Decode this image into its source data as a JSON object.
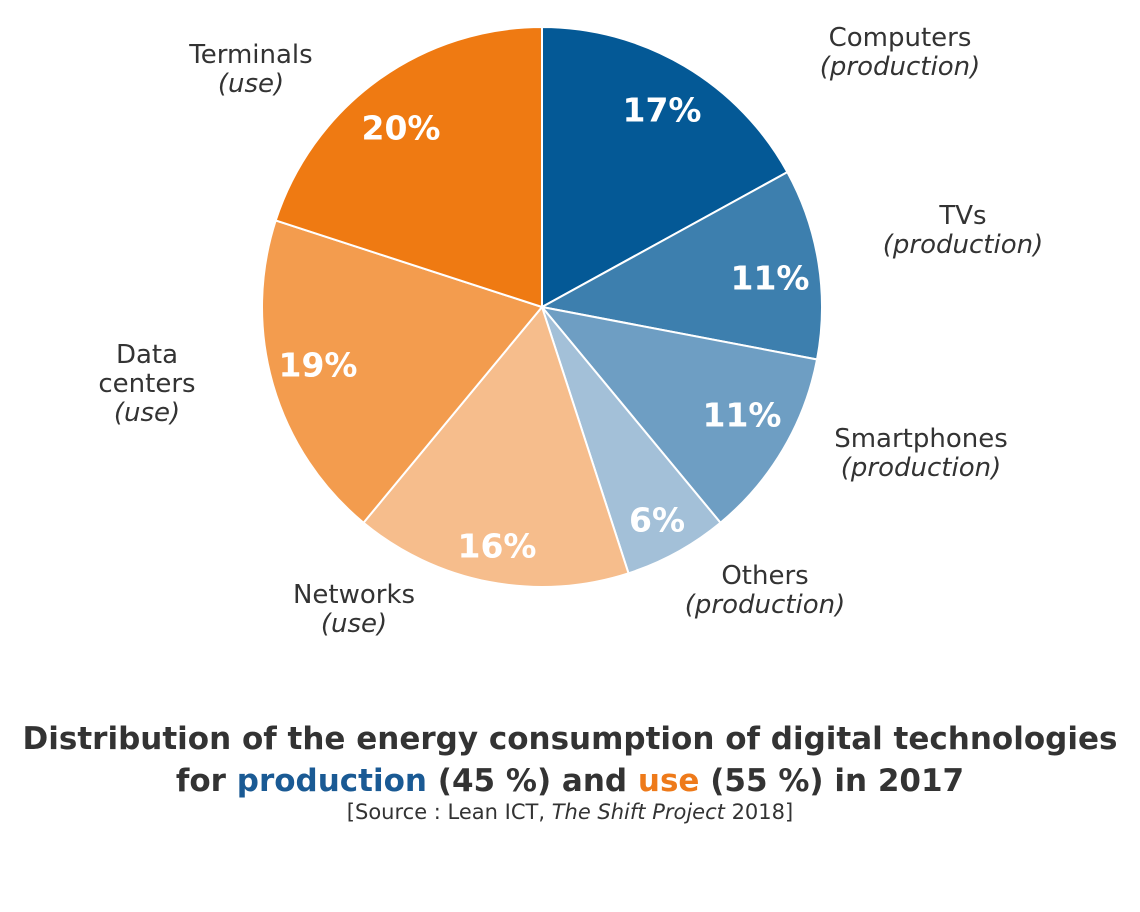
{
  "chart_data": {
    "type": "pie",
    "slices": [
      {
        "label_lines": [
          "Computers",
          "(production)"
        ],
        "value": 17,
        "value_label": "17%",
        "color": "#045996"
      },
      {
        "label_lines": [
          "TVs",
          "(production)"
        ],
        "value": 11,
        "value_label": "11%",
        "color": "#3d7fae"
      },
      {
        "label_lines": [
          "Smartphones",
          "(production)"
        ],
        "value": 11,
        "value_label": "11%",
        "color": "#6e9ec3"
      },
      {
        "label_lines": [
          "Others",
          "(production)"
        ],
        "value": 6,
        "value_label": "6%",
        "color": "#a3c0d8"
      },
      {
        "label_lines": [
          "Networks",
          "(use)"
        ],
        "value": 16,
        "value_label": "16%",
        "color": "#f6bd8c"
      },
      {
        "label_lines": [
          "Data",
          "centers",
          "(use)"
        ],
        "value": 19,
        "value_label": "19%",
        "color": "#f39c4e"
      },
      {
        "label_lines": [
          "Terminals",
          "(use)"
        ],
        "value": 20,
        "value_label": "20%",
        "color": "#ef7a12"
      }
    ]
  },
  "caption": {
    "line1_prefix": "Distribution of the energy consumption of digital technologies",
    "line2_for": "for ",
    "line2_production": "production",
    "line2_mid": " (45 %) and ",
    "line2_use": "use",
    "line2_end": " (55 %) in 2017",
    "source_prefix": "[Source : Lean ICT, ",
    "source_italic": "The Shift Project",
    "source_suffix": " 2018]"
  },
  "colors": {
    "production_accent": "#1a5a94",
    "use_accent": "#ee7a1a"
  }
}
